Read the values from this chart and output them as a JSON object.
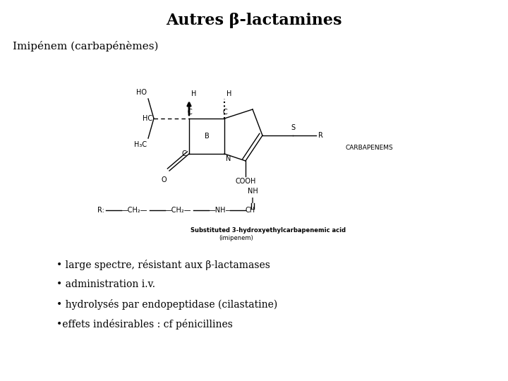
{
  "title": "Autres β-lactamines",
  "subtitle": "Imipénem (carbapénèmes)",
  "bullets": [
    "• large spectre, résistant aux β-lactamases",
    "• administration i.v.",
    "• hydrolysés par endopeptidase (cilastatine)",
    "•effets indésirables : cf pénicillines"
  ],
  "background_color": "#ffffff",
  "text_color": "#000000",
  "title_fontsize": 16,
  "subtitle_fontsize": 11,
  "bullet_fontsize": 10,
  "chem_fontsize": 7,
  "caption_fontsize": 6
}
